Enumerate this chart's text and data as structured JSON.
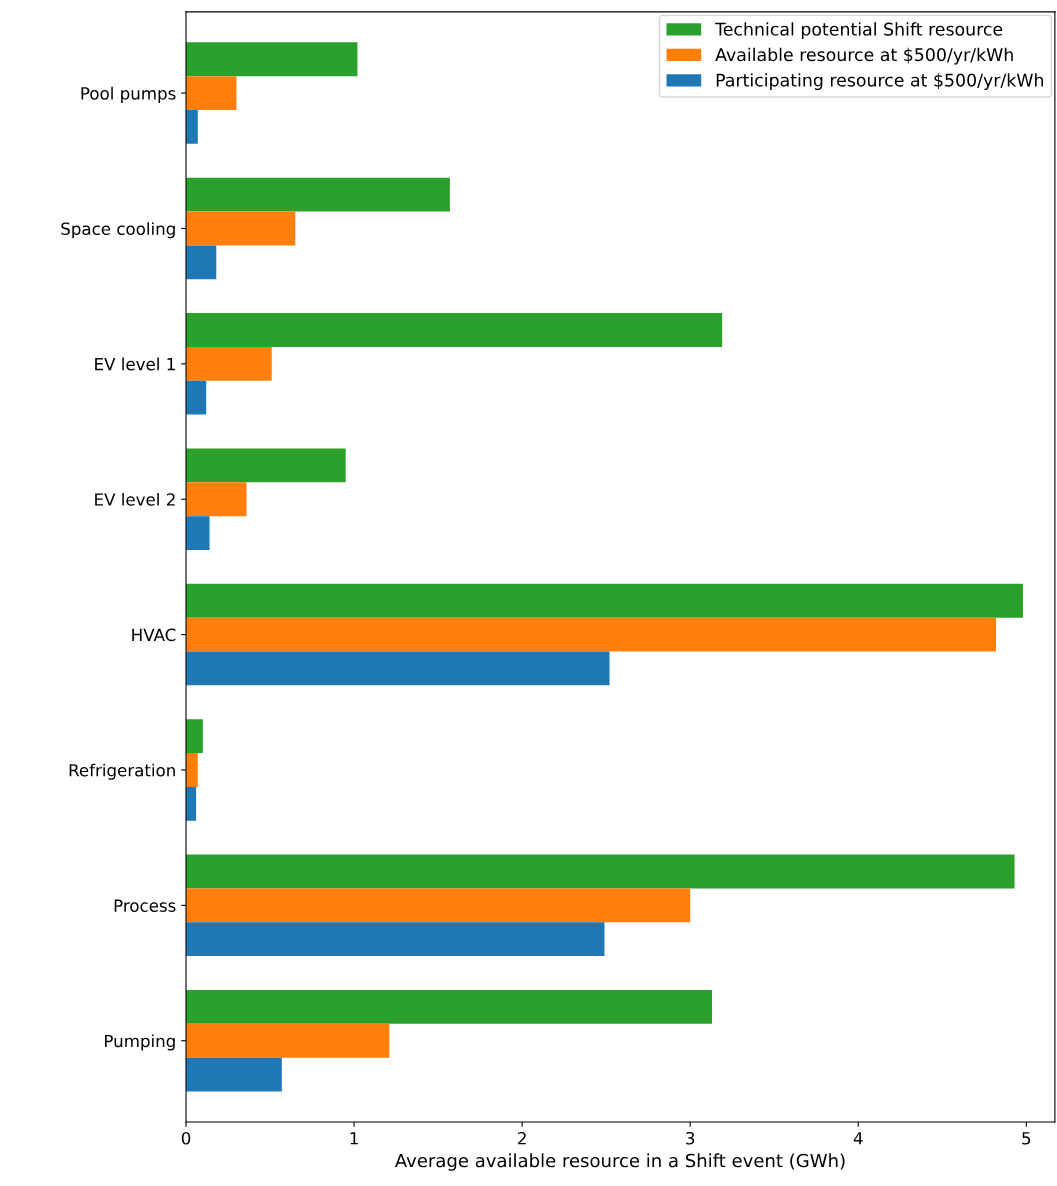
{
  "chart_data": {
    "type": "bar",
    "orientation": "horizontal",
    "xlabel": "Average available resource in a Shift event (GWh)",
    "categories": [
      "Pool pumps",
      "Space cooling",
      "EV level 1",
      "EV level 2",
      "HVAC",
      "Refrigeration",
      "Process",
      "Pumping"
    ],
    "series": [
      {
        "name": "Technical potential Shift resource",
        "color": "#2ca02c",
        "values": [
          1.02,
          1.57,
          3.19,
          0.95,
          4.98,
          0.1,
          4.93,
          3.13
        ]
      },
      {
        "name": "Available resource at $500/yr/kWh",
        "color": "#ff7f0e",
        "values": [
          0.3,
          0.65,
          0.51,
          0.36,
          4.82,
          0.07,
          3.0,
          1.21
        ]
      },
      {
        "name": "Participating resource at $500/yr/kWh",
        "color": "#1f77b4",
        "values": [
          0.07,
          0.18,
          0.12,
          0.14,
          2.52,
          0.06,
          2.49,
          0.57
        ]
      }
    ],
    "xlim": [
      0,
      5.17
    ],
    "xticks": [
      0,
      1,
      2,
      3,
      4,
      5
    ],
    "grid": false,
    "legend": "top right"
  }
}
